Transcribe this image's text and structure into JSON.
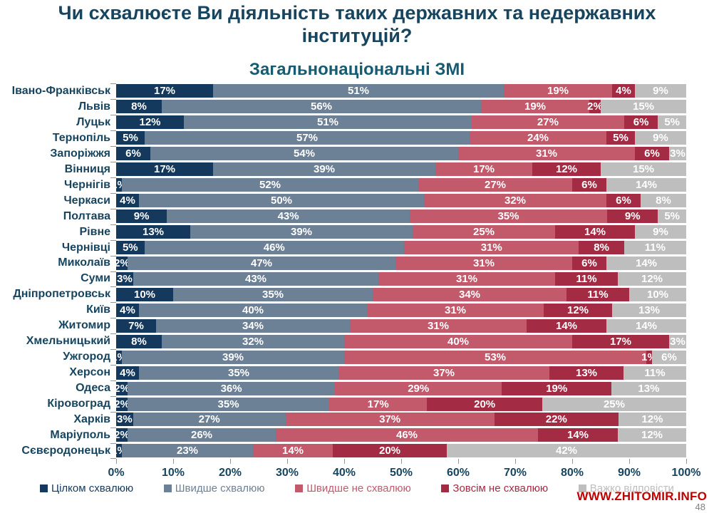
{
  "page": {
    "title": "Чи схвалюєте Ви діяльність таких державних та недержавних інституцій?",
    "watermark": "WWW.ZHITOMIR.INFO",
    "page_number": "48"
  },
  "colors": {
    "title_text": "#17455f",
    "subtitle_text": "#175b73",
    "axis_text": "#17455f",
    "watermark": "#c00000",
    "page_number": "#808080"
  },
  "chart_data": {
    "type": "bar",
    "stacked": true,
    "orientation": "horizontal",
    "title": "Загальнонаціональні ЗМІ",
    "xlabel": "",
    "ylabel": "",
    "xlim": [
      0,
      100
    ],
    "x_ticks": [
      "0%",
      "10%",
      "20%",
      "30%",
      "40%",
      "50%",
      "60%",
      "70%",
      "80%",
      "90%",
      "100%"
    ],
    "legend_position": "bottom",
    "value_suffix": "%",
    "categories": [
      "Івано-Франківськ",
      "Львів",
      "Луцьк",
      "Тернопіль",
      "Запоріжжя",
      "Вінниця",
      "Чернігів",
      "Черкаси",
      "Полтава",
      "Рівне",
      "Чернівці",
      "Миколаїв",
      "Суми",
      "Дніпропетровськ",
      "Київ",
      "Житомир",
      "Хмельницький",
      "Ужгород",
      "Херсон",
      "Одеса",
      "Кіровоград",
      "Харків",
      "Маріуполь",
      "Сєвєродонецьк"
    ],
    "series": [
      {
        "name": "Цілком схвалюю",
        "color": "#14395c",
        "values": [
          17,
          8,
          12,
          5,
          6,
          17,
          1,
          4,
          9,
          13,
          5,
          2,
          3,
          10,
          4,
          7,
          8,
          1,
          4,
          2,
          2,
          3,
          2,
          1
        ]
      },
      {
        "name": "Швидше схвалюю",
        "color": "#6d8196",
        "values": [
          51,
          56,
          51,
          57,
          54,
          39,
          52,
          50,
          43,
          39,
          46,
          47,
          43,
          35,
          40,
          34,
          32,
          39,
          35,
          36,
          35,
          27,
          26,
          23
        ]
      },
      {
        "name": "Швидше не схвалюю",
        "color": "#c25a6c",
        "values": [
          19,
          19,
          27,
          24,
          31,
          17,
          27,
          32,
          35,
          25,
          31,
          31,
          31,
          34,
          31,
          31,
          40,
          53,
          37,
          29,
          17,
          37,
          46,
          14
        ]
      },
      {
        "name": "Зовсім не схвалюю",
        "color": "#a32c44",
        "values": [
          4,
          2,
          6,
          5,
          6,
          12,
          6,
          6,
          9,
          14,
          8,
          6,
          11,
          11,
          12,
          14,
          17,
          1,
          13,
          19,
          20,
          22,
          14,
          20
        ]
      },
      {
        "name": "Важко відповісти",
        "color": "#bebebe",
        "values": [
          9,
          15,
          5,
          9,
          3,
          15,
          14,
          8,
          5,
          9,
          11,
          14,
          12,
          10,
          13,
          14,
          3,
          6,
          11,
          13,
          25,
          12,
          12,
          42
        ]
      }
    ]
  }
}
